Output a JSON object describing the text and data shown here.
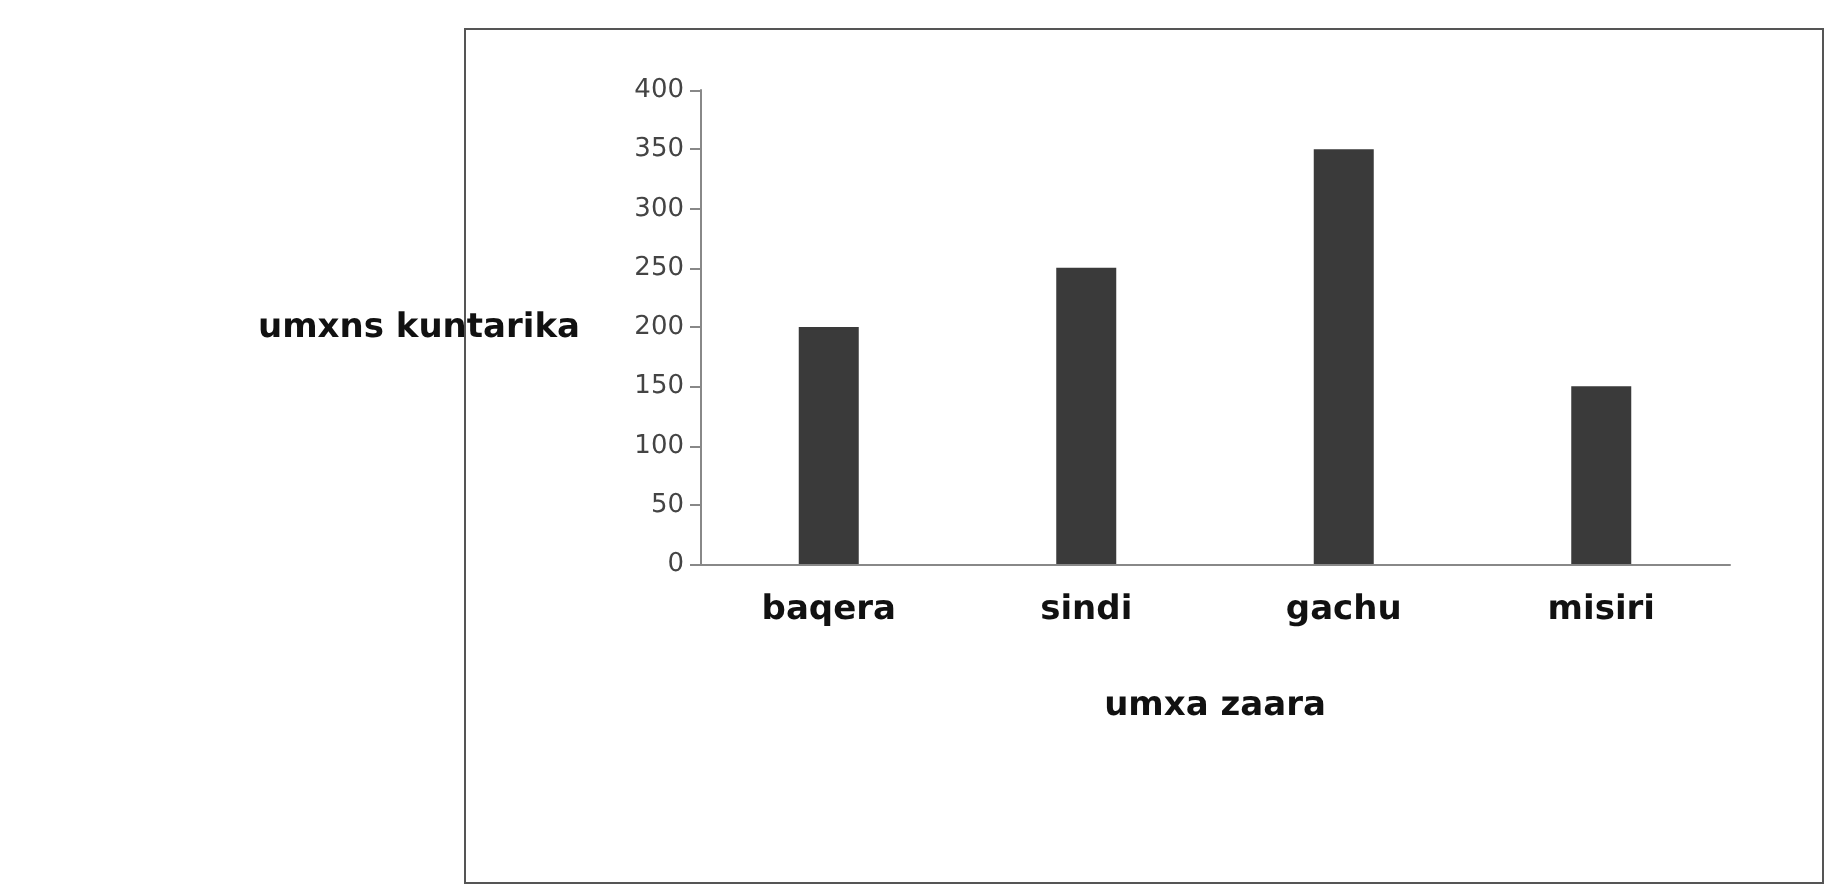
{
  "chart_data": {
    "type": "bar",
    "xlabel": "umxa zaara",
    "ylabel": "umxns kuntarika",
    "categories": [
      "baqera",
      "sindi",
      "gachu",
      "misiri"
    ],
    "values": [
      200,
      250,
      350,
      150
    ],
    "color": "#3a3a3a",
    "ylim": [
      0,
      400
    ],
    "yticks": [
      0,
      50,
      100,
      150,
      200,
      250,
      300,
      350,
      400
    ],
    "grid": false
  }
}
